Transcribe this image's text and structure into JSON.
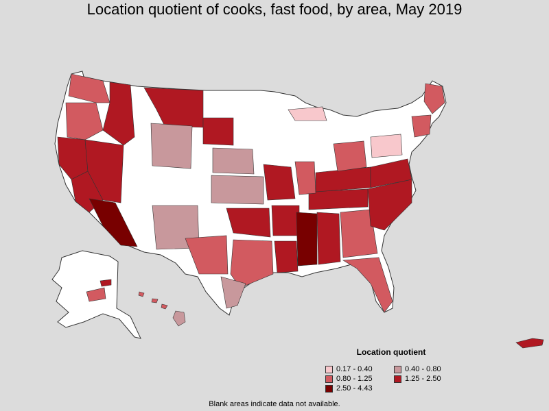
{
  "title": "Location quotient of cooks, fast food, by area, May 2019",
  "legend": {
    "title": "Location quotient",
    "items": [
      {
        "label": "0.17 - 0.40",
        "color": "#f8c8cc"
      },
      {
        "label": "0.40 - 0.80",
        "color": "#c8989c"
      },
      {
        "label": "0.80 - 1.25",
        "color": "#d25a60"
      },
      {
        "label": "1.25 - 2.50",
        "color": "#b01822"
      },
      {
        "label": "2.50 - 4.43",
        "color": "#780000"
      }
    ]
  },
  "footnote": "Blank areas indicate data not available.",
  "colors": {
    "background": "#dcdcdc",
    "no_data": "#ffffff",
    "border": "#333333"
  }
}
